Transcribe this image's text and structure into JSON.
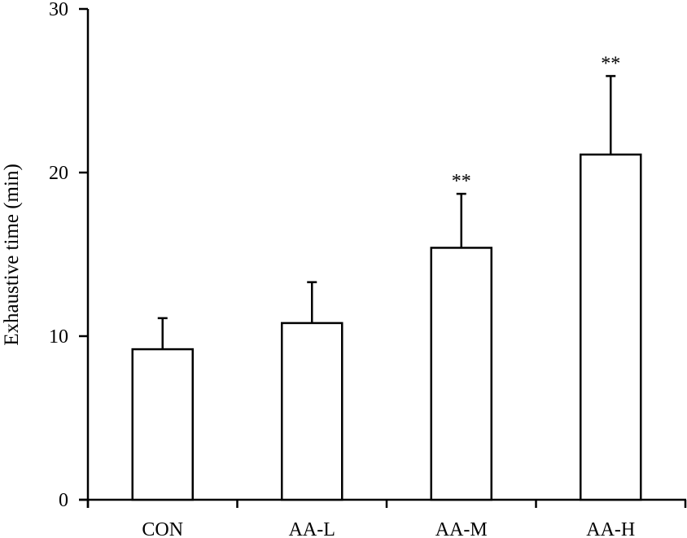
{
  "chart_data": {
    "type": "bar",
    "title": "",
    "xlabel": "",
    "ylabel": "Exhaustive time (min)",
    "categories": [
      "CON",
      "AA-L",
      "AA-M",
      "AA-H"
    ],
    "values": [
      9.2,
      10.8,
      15.4,
      21.1
    ],
    "error_upper": [
      1.9,
      2.5,
      3.3,
      4.8
    ],
    "annotations": [
      "",
      "",
      "**",
      "**"
    ],
    "ylim": [
      0,
      30
    ],
    "yticks": [
      0,
      10,
      20,
      30
    ],
    "ytick_labels": [
      "0",
      "10",
      "20",
      "30"
    ],
    "grid": false,
    "legend": null,
    "bar_fill": "#ffffff",
    "bar_edge": "#000000"
  }
}
